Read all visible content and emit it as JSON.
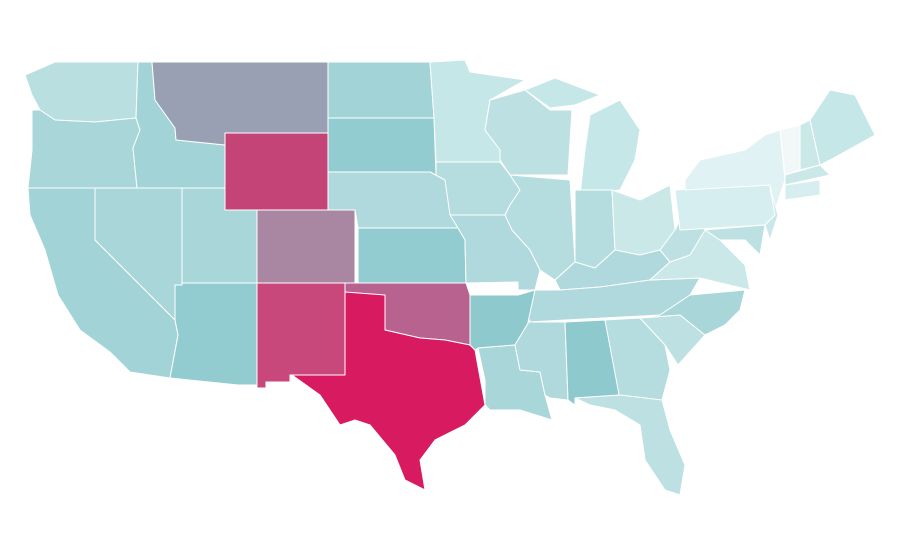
{
  "map": {
    "region_fills": [
      "#b9dfe0",
      "#a8d6d9",
      "#a1d3d7",
      "#a8d6d9",
      "#a1d3d7",
      "#9aa0b3",
      "#c44478",
      "#a8d6d9",
      "#93ccd0",
      "#a986a1",
      "#c8487c",
      "#a1d3d7",
      "#93ccd0",
      "#afd9dc",
      "#93ccd0",
      "#b8628f",
      "#d81b60",
      "#c6e7e8",
      "#b5dcde",
      "#afd9dc",
      "#8ec9cd",
      "#a8d6d9",
      "#bde1e2",
      "#b5dcde",
      "#c6e7e8",
      "#b5dcde",
      "#cbe8e9",
      "#afd9dc",
      "#afd9dc",
      "#afd9dc",
      "#8ec9cd",
      "#b5dcde",
      "#bde1e2",
      "#bde1e2",
      "#a8d6d9",
      "#cbe8e9",
      "#bde1e2",
      "#d6eeef",
      "#e0f2f3",
      "#cbe8e9",
      "#bde1e2",
      "#f2f7f8",
      "#cbe8e9",
      "#c6e7e8",
      "#cbe8e9",
      "#d6eeef",
      "#c6e7e8"
    ]
  }
}
